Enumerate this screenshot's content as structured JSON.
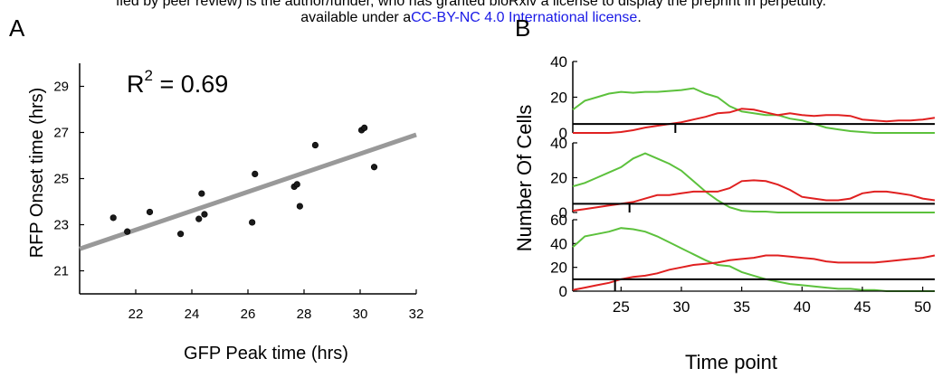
{
  "banner": {
    "line1": "fied by peer review) is the author/funder, who has granted bioRxiv a license to display the preprint in perpetuity.",
    "line2_pre": "available under a",
    "line2_link": "CC-BY-NC 4.0 International license",
    "line2_post": "."
  },
  "panel_labels": {
    "a": "A",
    "b": "B"
  },
  "chart_data": [
    {
      "type": "scatter",
      "xlabel": "GFP Peak time (hrs)",
      "ylabel": "RFP Onset time (hrs)",
      "annotation_base": "R",
      "annotation_sup": "2",
      "annotation_rest": " = 0.69",
      "xlim": [
        20,
        32
      ],
      "ylim": [
        20,
        30
      ],
      "xticks": [
        22,
        24,
        26,
        28,
        30,
        32
      ],
      "yticks": [
        21,
        23,
        25,
        27,
        29
      ],
      "points": [
        [
          21.2,
          23.3
        ],
        [
          21.7,
          22.7
        ],
        [
          22.5,
          23.55
        ],
        [
          23.6,
          22.6
        ],
        [
          24.25,
          23.25
        ],
        [
          24.35,
          24.35
        ],
        [
          24.45,
          23.45
        ],
        [
          26.15,
          23.1
        ],
        [
          26.25,
          25.2
        ],
        [
          27.65,
          24.65
        ],
        [
          27.75,
          24.75
        ],
        [
          27.85,
          23.8
        ],
        [
          28.4,
          26.45
        ],
        [
          30.05,
          27.1
        ],
        [
          30.15,
          27.2
        ],
        [
          30.5,
          25.5
        ]
      ],
      "fit_line": [
        [
          20,
          21.95
        ],
        [
          32,
          26.9
        ]
      ],
      "colors": {
        "points": "#1a1a1a",
        "fit": "#999999"
      }
    },
    {
      "type": "line",
      "xlabel": "Time point",
      "ylabel": "Number Of Cells",
      "xlim": [
        21,
        51
      ],
      "xticks": [
        25,
        30,
        35,
        40,
        45,
        50
      ],
      "colors": {
        "green": "#5cc13c",
        "red": "#e02020",
        "black": "#000000"
      },
      "subplots": [
        {
          "ylim": [
            0,
            40
          ],
          "yticks": [
            0,
            20,
            40
          ],
          "threshold": 5,
          "marker_x": 29.5,
          "green": [
            [
              21,
              13
            ],
            [
              22,
              18
            ],
            [
              23,
              20
            ],
            [
              24,
              22
            ],
            [
              25,
              23
            ],
            [
              26,
              22.5
            ],
            [
              27,
              23
            ],
            [
              28,
              23
            ],
            [
              29,
              23.5
            ],
            [
              30,
              24
            ],
            [
              31,
              25
            ],
            [
              32,
              22
            ],
            [
              33,
              20
            ],
            [
              34,
              15
            ],
            [
              35,
              12
            ],
            [
              36,
              11
            ],
            [
              37,
              10
            ],
            [
              38,
              10
            ],
            [
              39,
              8
            ],
            [
              40,
              7
            ],
            [
              41,
              5
            ],
            [
              42,
              3
            ],
            [
              43,
              2
            ],
            [
              44,
              1
            ],
            [
              45,
              0.5
            ],
            [
              46,
              0
            ],
            [
              47,
              0
            ],
            [
              48,
              0
            ],
            [
              49,
              0
            ],
            [
              50,
              0
            ],
            [
              51,
              0
            ]
          ],
          "red": [
            [
              21,
              0
            ],
            [
              22,
              0
            ],
            [
              23,
              0
            ],
            [
              24,
              0
            ],
            [
              25,
              0.5
            ],
            [
              26,
              1.5
            ],
            [
              27,
              3
            ],
            [
              28,
              4
            ],
            [
              29,
              5
            ],
            [
              30,
              6
            ],
            [
              31,
              7.5
            ],
            [
              32,
              9
            ],
            [
              33,
              11
            ],
            [
              34,
              11.5
            ],
            [
              35,
              13.5
            ],
            [
              36,
              13
            ],
            [
              37,
              11.5
            ],
            [
              38,
              10
            ],
            [
              39,
              11
            ],
            [
              40,
              10
            ],
            [
              41,
              9.5
            ],
            [
              42,
              10
            ],
            [
              43,
              10
            ],
            [
              44,
              9.5
            ],
            [
              45,
              7.5
            ],
            [
              46,
              7
            ],
            [
              47,
              6.5
            ],
            [
              48,
              7
            ],
            [
              49,
              7
            ],
            [
              50,
              7.5
            ],
            [
              51,
              8.5
            ]
          ]
        },
        {
          "ylim": [
            0,
            40
          ],
          "yticks": [
            0,
            20,
            40
          ],
          "threshold": 5,
          "marker_x": 25.7,
          "green": [
            [
              21,
              15
            ],
            [
              22,
              17
            ],
            [
              23,
              20
            ],
            [
              24,
              23
            ],
            [
              25,
              26
            ],
            [
              26,
              31
            ],
            [
              27,
              34
            ],
            [
              28,
              31
            ],
            [
              29,
              28
            ],
            [
              30,
              24
            ],
            [
              31,
              18
            ],
            [
              32,
              12
            ],
            [
              33,
              7
            ],
            [
              34,
              3
            ],
            [
              35,
              1
            ],
            [
              36,
              0.5
            ],
            [
              37,
              0.5
            ],
            [
              38,
              0
            ],
            [
              39,
              0
            ],
            [
              40,
              0
            ],
            [
              41,
              0
            ],
            [
              42,
              0
            ],
            [
              43,
              0
            ],
            [
              44,
              0
            ],
            [
              45,
              0
            ],
            [
              46,
              0
            ],
            [
              47,
              0
            ],
            [
              48,
              0
            ],
            [
              49,
              0
            ],
            [
              50,
              0
            ],
            [
              51,
              0
            ]
          ],
          "red": [
            [
              21,
              1
            ],
            [
              22,
              2
            ],
            [
              23,
              3
            ],
            [
              24,
              4
            ],
            [
              25,
              5
            ],
            [
              26,
              6
            ],
            [
              27,
              8
            ],
            [
              28,
              10
            ],
            [
              29,
              10
            ],
            [
              30,
              11
            ],
            [
              31,
              12
            ],
            [
              32,
              12
            ],
            [
              33,
              12
            ],
            [
              34,
              14
            ],
            [
              35,
              18
            ],
            [
              36,
              18.5
            ],
            [
              37,
              18
            ],
            [
              38,
              16
            ],
            [
              39,
              13
            ],
            [
              40,
              9
            ],
            [
              41,
              8
            ],
            [
              42,
              7
            ],
            [
              43,
              7
            ],
            [
              44,
              8
            ],
            [
              45,
              11
            ],
            [
              46,
              12
            ],
            [
              47,
              12
            ],
            [
              48,
              11
            ],
            [
              49,
              10
            ],
            [
              50,
              8
            ],
            [
              51,
              7
            ]
          ]
        },
        {
          "ylim": [
            0,
            60
          ],
          "yticks": [
            0,
            20,
            40,
            60
          ],
          "threshold": 10,
          "marker_x": 24.5,
          "green": [
            [
              21,
              37
            ],
            [
              22,
              46
            ],
            [
              23,
              48
            ],
            [
              24,
              50
            ],
            [
              25,
              53
            ],
            [
              26,
              52
            ],
            [
              27,
              50
            ],
            [
              28,
              46
            ],
            [
              29,
              41
            ],
            [
              30,
              36
            ],
            [
              31,
              31
            ],
            [
              32,
              26
            ],
            [
              33,
              22
            ],
            [
              34,
              21
            ],
            [
              35,
              16
            ],
            [
              36,
              13
            ],
            [
              37,
              10
            ],
            [
              38,
              8
            ],
            [
              39,
              6
            ],
            [
              40,
              5
            ],
            [
              41,
              4
            ],
            [
              42,
              3
            ],
            [
              43,
              2
            ],
            [
              44,
              2
            ],
            [
              45,
              1
            ],
            [
              46,
              1
            ],
            [
              47,
              0
            ],
            [
              48,
              0
            ],
            [
              49,
              0
            ],
            [
              50,
              0
            ],
            [
              51,
              0
            ]
          ],
          "red": [
            [
              21,
              1
            ],
            [
              22,
              3
            ],
            [
              23,
              5
            ],
            [
              24,
              7
            ],
            [
              25,
              10
            ],
            [
              26,
              12
            ],
            [
              27,
              13
            ],
            [
              28,
              15
            ],
            [
              29,
              18
            ],
            [
              30,
              20
            ],
            [
              31,
              22
            ],
            [
              32,
              23
            ],
            [
              33,
              24
            ],
            [
              34,
              26
            ],
            [
              35,
              27
            ],
            [
              36,
              28
            ],
            [
              37,
              30
            ],
            [
              38,
              30
            ],
            [
              39,
              29
            ],
            [
              40,
              28
            ],
            [
              41,
              27
            ],
            [
              42,
              25
            ],
            [
              43,
              24
            ],
            [
              44,
              24
            ],
            [
              45,
              24
            ],
            [
              46,
              24
            ],
            [
              47,
              25
            ],
            [
              48,
              26
            ],
            [
              49,
              27
            ],
            [
              50,
              28
            ],
            [
              51,
              30
            ]
          ]
        }
      ]
    }
  ]
}
